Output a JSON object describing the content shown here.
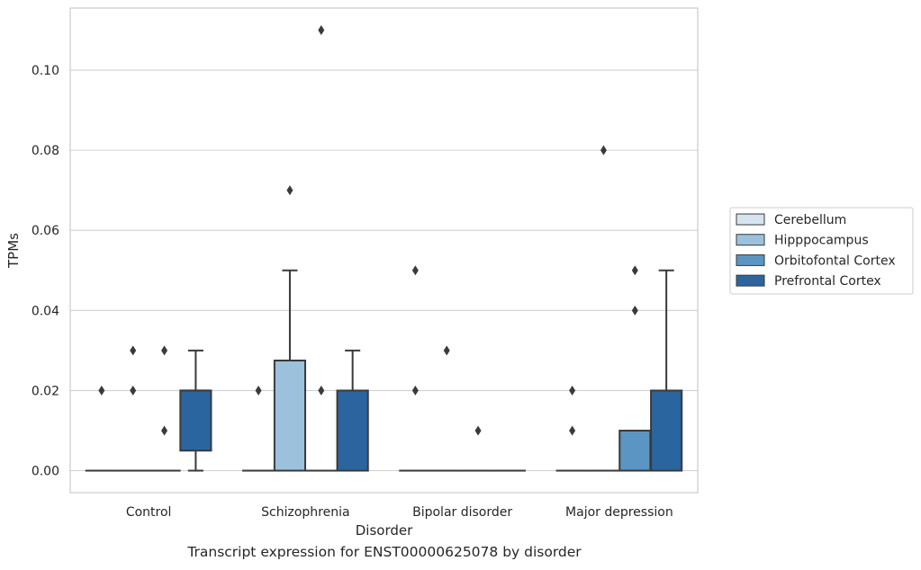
{
  "caption": "Transcript expression for ENST00000625078 by disorder",
  "chart_data": {
    "type": "box",
    "xlabel": "Disorder",
    "ylabel": "TPMs",
    "ylim": [
      -0.0055,
      0.1155
    ],
    "yticks": [
      0.0,
      0.02,
      0.04,
      0.06,
      0.08,
      0.1
    ],
    "ytick_labels": [
      "0.00",
      "0.02",
      "0.04",
      "0.06",
      "0.08",
      "0.10"
    ],
    "grid": "horizontal",
    "legend_position": "right",
    "categories": [
      "Control",
      "Schizophrenia",
      "Bipolar disorder",
      "Major depression"
    ],
    "series": [
      {
        "name": "Cerebellum",
        "color": "#d6e4f0",
        "boxes": [
          {
            "q1": 0,
            "median": 0,
            "q3": 0,
            "whisker_low": 0,
            "whisker_high": 0,
            "outliers": [
              0.02
            ]
          },
          {
            "q1": 0,
            "median": 0,
            "q3": 0,
            "whisker_low": 0,
            "whisker_high": 0,
            "outliers": [
              0.02
            ]
          },
          {
            "q1": 0,
            "median": 0,
            "q3": 0,
            "whisker_low": 0,
            "whisker_high": 0,
            "outliers": [
              0.02,
              0.05
            ]
          },
          {
            "q1": 0,
            "median": 0,
            "q3": 0,
            "whisker_low": 0,
            "whisker_high": 0,
            "outliers": [
              0.01,
              0.02
            ]
          }
        ]
      },
      {
        "name": "Hipppocampus",
        "color": "#9cc1dc",
        "boxes": [
          {
            "q1": 0,
            "median": 0,
            "q3": 0,
            "whisker_low": 0,
            "whisker_high": 0,
            "outliers": [
              0.02,
              0.03
            ]
          },
          {
            "q1": 0,
            "median": 0,
            "q3": 0.0275,
            "whisker_low": 0,
            "whisker_high": 0.05,
            "outliers": [
              0.07
            ]
          },
          {
            "q1": 0,
            "median": 0,
            "q3": 0,
            "whisker_low": 0,
            "whisker_high": 0,
            "outliers": [
              0.03
            ]
          },
          {
            "q1": 0,
            "median": 0,
            "q3": 0,
            "whisker_low": 0,
            "whisker_high": 0,
            "outliers": [
              0.08
            ]
          }
        ]
      },
      {
        "name": "Orbitofontal Cortex",
        "color": "#5a95c3",
        "boxes": [
          {
            "q1": 0,
            "median": 0,
            "q3": 0,
            "whisker_low": 0,
            "whisker_high": 0,
            "outliers": [
              0.01,
              0.03
            ]
          },
          {
            "q1": 0,
            "median": 0,
            "q3": 0,
            "whisker_low": 0,
            "whisker_high": 0,
            "outliers": [
              0.02,
              0.11
            ]
          },
          {
            "q1": 0,
            "median": 0,
            "q3": 0,
            "whisker_low": 0,
            "whisker_high": 0,
            "outliers": [
              0.01
            ]
          },
          {
            "q1": 0,
            "median": 0,
            "q3": 0.01,
            "whisker_low": 0,
            "whisker_high": 0.01,
            "outliers": [
              0.04,
              0.05
            ]
          }
        ]
      },
      {
        "name": "Prefrontal Cortex",
        "color": "#2b65a0",
        "boxes": [
          {
            "q1": 0.005,
            "median": 0.02,
            "q3": 0.02,
            "whisker_low": 0,
            "whisker_high": 0.03,
            "outliers": []
          },
          {
            "q1": 0,
            "median": 0,
            "q3": 0.02,
            "whisker_low": 0,
            "whisker_high": 0.03,
            "outliers": []
          },
          {
            "q1": 0,
            "median": 0,
            "q3": 0,
            "whisker_low": 0,
            "whisker_high": 0,
            "outliers": []
          },
          {
            "q1": 0,
            "median": 0,
            "q3": 0.02,
            "whisker_low": 0,
            "whisker_high": 0.05,
            "outliers": []
          }
        ]
      }
    ]
  }
}
